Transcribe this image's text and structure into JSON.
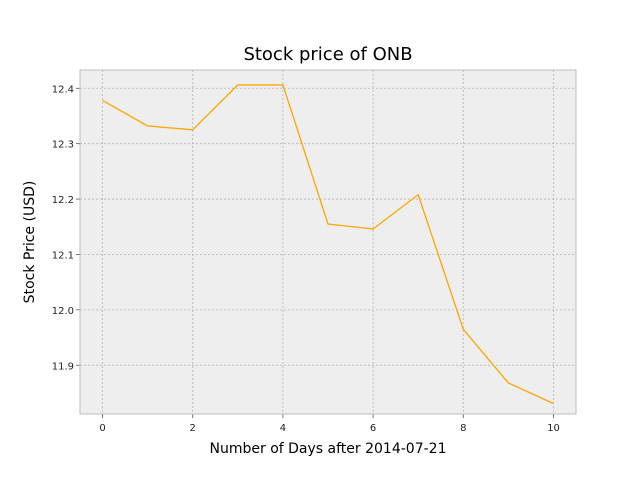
{
  "chart_data": {
    "type": "line",
    "title": "Stock price of ONB",
    "xlabel": "Number of Days after 2014-07-21",
    "ylabel": "Stock Price (USD)",
    "x": [
      0,
      1,
      2,
      3,
      4,
      5,
      6,
      7,
      8,
      9,
      10
    ],
    "series": [
      {
        "values": [
          12.378,
          12.332,
          12.325,
          12.406,
          12.406,
          12.155,
          12.146,
          12.208,
          11.965,
          11.868,
          11.831
        ]
      }
    ],
    "xlim": [
      -0.5,
      10.5
    ],
    "ylim": [
      11.812,
      12.433
    ],
    "xticks": [
      0,
      2,
      4,
      6,
      8,
      10
    ],
    "yticks": [
      11.9,
      12.0,
      12.1,
      12.2,
      12.3,
      12.4
    ],
    "xtick_labels": [
      "0",
      "2",
      "4",
      "6",
      "8",
      "10"
    ],
    "ytick_labels": [
      "11.9",
      "12.0",
      "12.1",
      "12.2",
      "12.3",
      "12.4"
    ],
    "grid": true,
    "line_color": "#ffa500",
    "background_color": "#eeeeee",
    "grid_color": "#b2b2b2"
  }
}
